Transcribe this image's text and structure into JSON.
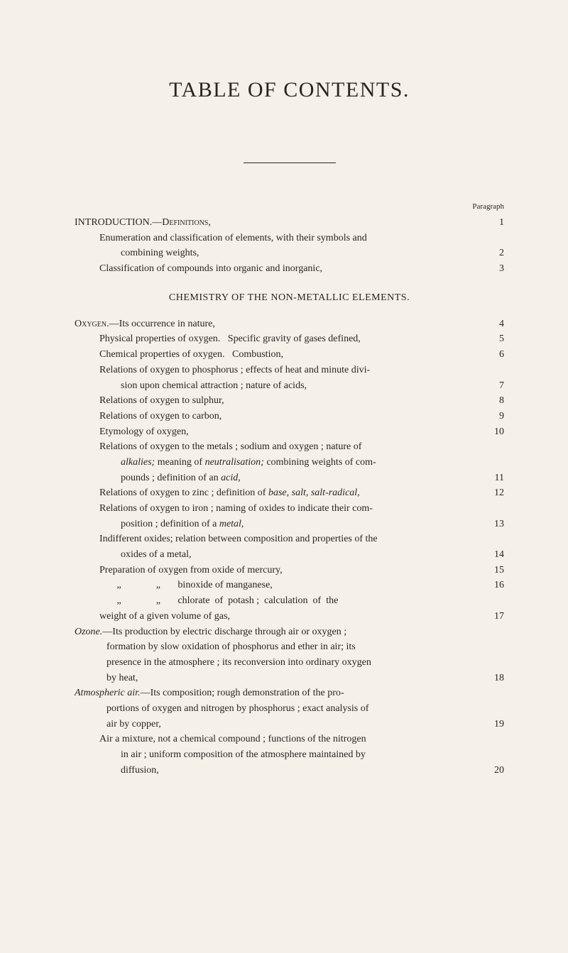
{
  "title": "TABLE OF CONTENTS.",
  "paragraph_label": "Paragraph",
  "section_heading": "CHEMISTRY OF THE NON-METALLIC ELEMENTS.",
  "entries": [
    {
      "text_parts": [
        {
          "t": "INTRODUCTION.—",
          "cls": ""
        },
        {
          "t": "Definitions",
          "cls": "smallcaps"
        },
        {
          "t": ",",
          "cls": ""
        }
      ],
      "num": "1",
      "indent": 0
    },
    {
      "text_parts": [
        {
          "t": "Enumeration and classification of elements, with their symbols and combining weights,",
          "cls": ""
        }
      ],
      "num": "2",
      "indent": 1,
      "wrap": true,
      "lines": [
        "Enumeration and classification of elements, with their symbols and",
        "combining weights,"
      ]
    },
    {
      "text_parts": [
        {
          "t": "Classification of compounds into organic and inorganic,",
          "cls": ""
        }
      ],
      "num": "3",
      "indent": 1
    }
  ],
  "entries2": [
    {
      "lines": [
        [
          {
            "t": "Oxygen",
            "cls": "smallcaps"
          },
          {
            "t": ".—Its occurrence in nature,",
            "cls": ""
          }
        ]
      ],
      "num": "4",
      "indent": 0
    },
    {
      "lines": [
        [
          {
            "t": "Physical properties of oxygen.   Specific gravity of gases defined,",
            "cls": ""
          }
        ]
      ],
      "num": "5",
      "indent": 1
    },
    {
      "lines": [
        [
          {
            "t": "Chemical properties of oxygen.   Combustion,",
            "cls": ""
          }
        ]
      ],
      "num": "6",
      "indent": 1
    },
    {
      "lines": [
        [
          {
            "t": "Relations of oxygen to phosphorus ; effects of heat and minute divi-",
            "cls": ""
          }
        ],
        [
          {
            "t": "sion upon chemical attraction ; nature of acids,",
            "cls": ""
          }
        ]
      ],
      "num": "7",
      "indent": 1
    },
    {
      "lines": [
        [
          {
            "t": "Relations of oxygen to sulphur,",
            "cls": ""
          }
        ]
      ],
      "num": "8",
      "indent": 1
    },
    {
      "lines": [
        [
          {
            "t": "Relations of oxygen to carbon,",
            "cls": ""
          }
        ]
      ],
      "num": "9",
      "indent": 1
    },
    {
      "lines": [
        [
          {
            "t": "Etymology of oxygen,",
            "cls": ""
          }
        ]
      ],
      "num": "10",
      "indent": 1
    },
    {
      "lines": [
        [
          {
            "t": "Relations of oxygen to the metals ; sodium and oxygen ; nature of",
            "cls": ""
          }
        ],
        [
          {
            "t": "alkalies;",
            "cls": "italic"
          },
          {
            "t": " meaning of ",
            "cls": ""
          },
          {
            "t": "neutralisation;",
            "cls": "italic"
          },
          {
            "t": " combining weights of com-",
            "cls": ""
          }
        ],
        [
          {
            "t": "pounds ; definition of an ",
            "cls": ""
          },
          {
            "t": "acid,",
            "cls": "italic"
          }
        ]
      ],
      "num": "11",
      "indent": 1
    },
    {
      "lines": [
        [
          {
            "t": "Relations of oxygen to zinc ; definition of ",
            "cls": ""
          },
          {
            "t": "base, salt, salt-radical,",
            "cls": "italic"
          }
        ]
      ],
      "num": "12",
      "indent": 1
    },
    {
      "lines": [
        [
          {
            "t": "Relations of oxygen to iron ; naming of oxides to indicate their com-",
            "cls": ""
          }
        ],
        [
          {
            "t": "position ; definition of a ",
            "cls": ""
          },
          {
            "t": "metal,",
            "cls": "italic"
          }
        ]
      ],
      "num": "13",
      "indent": 1
    },
    {
      "lines": [
        [
          {
            "t": "Indifferent oxides; relation between composition and properties of the",
            "cls": ""
          }
        ],
        [
          {
            "t": "oxides of a metal,",
            "cls": ""
          }
        ]
      ],
      "num": "14",
      "indent": 1
    },
    {
      "lines": [
        [
          {
            "t": "Preparation of oxygen from oxide of mercury,",
            "cls": ""
          }
        ]
      ],
      "num": "15",
      "indent": 1
    },
    {
      "lines": [
        [
          {
            "t": "       „              „       binoxide of manganese,",
            "cls": ""
          }
        ]
      ],
      "num": "16",
      "indent": 1
    },
    {
      "lines": [
        [
          {
            "t": "       „              „       chlorate  of  potash ;  calculation  of  the",
            "cls": ""
          }
        ],
        [
          {
            "t": "weight of a given volume of gas,",
            "cls": ""
          }
        ]
      ],
      "num": "17",
      "indent": 1,
      "cont_indent": 1
    },
    {
      "lines": [
        [
          {
            "t": "Ozone.",
            "cls": "italic"
          },
          {
            "t": "—Its production by electric discharge through air or oxygen ;",
            "cls": ""
          }
        ],
        [
          {
            "t": "formation by slow oxidation of phosphorus and ether in air; its",
            "cls": ""
          }
        ],
        [
          {
            "t": "presence in the atmosphere ; its reconversion into ordinary oxygen",
            "cls": ""
          }
        ],
        [
          {
            "t": "by heat,",
            "cls": ""
          }
        ]
      ],
      "num": "18",
      "indent": 0
    },
    {
      "lines": [
        [
          {
            "t": "Atmospheric air.",
            "cls": "italic"
          },
          {
            "t": "—Its composition; rough demonstration of the pro-",
            "cls": ""
          }
        ],
        [
          {
            "t": "portions of oxygen and nitrogen by phosphorus ; exact analysis of",
            "cls": ""
          }
        ],
        [
          {
            "t": "air by copper,",
            "cls": ""
          }
        ]
      ],
      "num": "19",
      "indent": 0
    },
    {
      "lines": [
        [
          {
            "t": "Air a mixture, not a chemical compound ; functions of the nitrogen",
            "cls": ""
          }
        ],
        [
          {
            "t": "in air ; uniform composition of the atmosphere maintained by",
            "cls": ""
          }
        ],
        [
          {
            "t": "diffusion,",
            "cls": ""
          }
        ]
      ],
      "num": "20",
      "indent": 1
    }
  ]
}
